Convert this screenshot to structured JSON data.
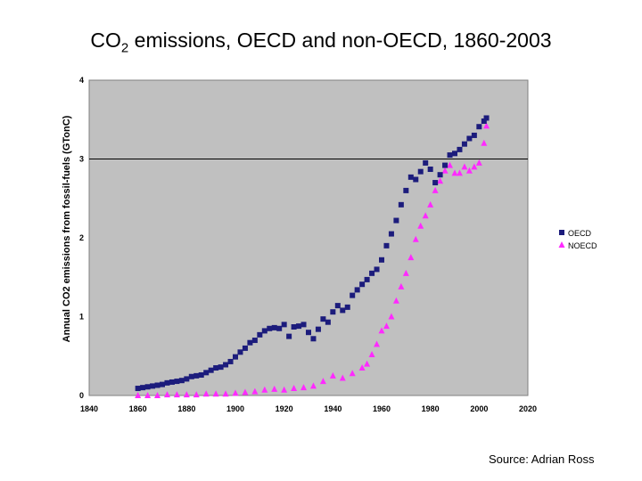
{
  "title": {
    "prefix": "CO",
    "sub": "2",
    "suffix": " emissions, OECD and non-OECD, 1860-2003"
  },
  "source": "Source: Adrian Ross",
  "colors": {
    "plot_bg": "#c0c0c0",
    "oecd": "#1c1c7c",
    "noecd": "#ff2aff"
  },
  "chart_data": {
    "type": "scatter",
    "title": "CO2 emissions, OECD and non-OECD, 1860-2003",
    "xlabel": "",
    "ylabel": "Annual CO2 emissions from fossil-fuels (GTonC)",
    "xlim": [
      1840,
      2020
    ],
    "ylim": [
      0,
      4
    ],
    "xticks": [
      "1840",
      "1860",
      "1880",
      "1900",
      "1920",
      "1940",
      "1960",
      "1980",
      "2000",
      "2020"
    ],
    "yticks": [
      "0",
      "1",
      "2",
      "3",
      "4"
    ],
    "reference_line": {
      "y": 3
    },
    "grid": false,
    "legend": "right",
    "series": [
      {
        "name": "OECD",
        "marker": "square",
        "x": [
          1860,
          1862,
          1864,
          1866,
          1868,
          1870,
          1872,
          1874,
          1876,
          1878,
          1880,
          1882,
          1884,
          1886,
          1888,
          1890,
          1892,
          1894,
          1896,
          1898,
          1900,
          1902,
          1904,
          1906,
          1908,
          1910,
          1912,
          1914,
          1916,
          1918,
          1920,
          1922,
          1924,
          1926,
          1928,
          1930,
          1932,
          1934,
          1936,
          1938,
          1940,
          1942,
          1944,
          1946,
          1948,
          1950,
          1952,
          1954,
          1956,
          1958,
          1960,
          1962,
          1964,
          1966,
          1968,
          1970,
          1972,
          1974,
          1976,
          1978,
          1980,
          1982,
          1984,
          1986,
          1988,
          1990,
          1992,
          1994,
          1996,
          1998,
          2000,
          2002,
          2003
        ],
        "y": [
          0.09,
          0.1,
          0.11,
          0.12,
          0.13,
          0.14,
          0.16,
          0.17,
          0.18,
          0.19,
          0.21,
          0.24,
          0.25,
          0.26,
          0.29,
          0.32,
          0.35,
          0.36,
          0.39,
          0.43,
          0.49,
          0.55,
          0.6,
          0.67,
          0.7,
          0.77,
          0.82,
          0.85,
          0.86,
          0.85,
          0.9,
          0.75,
          0.87,
          0.88,
          0.9,
          0.8,
          0.72,
          0.84,
          0.97,
          0.93,
          1.06,
          1.14,
          1.08,
          1.12,
          1.27,
          1.34,
          1.41,
          1.47,
          1.55,
          1.6,
          1.72,
          1.9,
          2.05,
          2.22,
          2.42,
          2.6,
          2.77,
          2.74,
          2.84,
          2.95,
          2.87,
          2.7,
          2.8,
          2.92,
          3.05,
          3.07,
          3.12,
          3.19,
          3.26,
          3.3,
          3.41,
          3.48,
          3.52
        ]
      },
      {
        "name": "NOECD",
        "marker": "triangle",
        "x": [
          1860,
          1864,
          1868,
          1872,
          1876,
          1880,
          1884,
          1888,
          1892,
          1896,
          1900,
          1904,
          1908,
          1912,
          1916,
          1920,
          1924,
          1928,
          1932,
          1936,
          1940,
          1944,
          1948,
          1952,
          1954,
          1956,
          1958,
          1960,
          1962,
          1964,
          1966,
          1968,
          1970,
          1972,
          1974,
          1976,
          1978,
          1980,
          1982,
          1984,
          1986,
          1988,
          1990,
          1992,
          1994,
          1996,
          1998,
          2000,
          2002,
          2003
        ],
        "y": [
          0.0,
          0.0,
          0.0,
          0.01,
          0.01,
          0.01,
          0.01,
          0.02,
          0.02,
          0.02,
          0.03,
          0.04,
          0.05,
          0.07,
          0.08,
          0.07,
          0.09,
          0.1,
          0.12,
          0.18,
          0.25,
          0.22,
          0.28,
          0.35,
          0.4,
          0.52,
          0.65,
          0.82,
          0.88,
          1.0,
          1.2,
          1.38,
          1.55,
          1.75,
          1.98,
          2.15,
          2.28,
          2.42,
          2.6,
          2.72,
          2.85,
          2.92,
          2.82,
          2.82,
          2.9,
          2.85,
          2.9,
          2.95,
          3.2,
          3.42
        ]
      }
    ]
  }
}
